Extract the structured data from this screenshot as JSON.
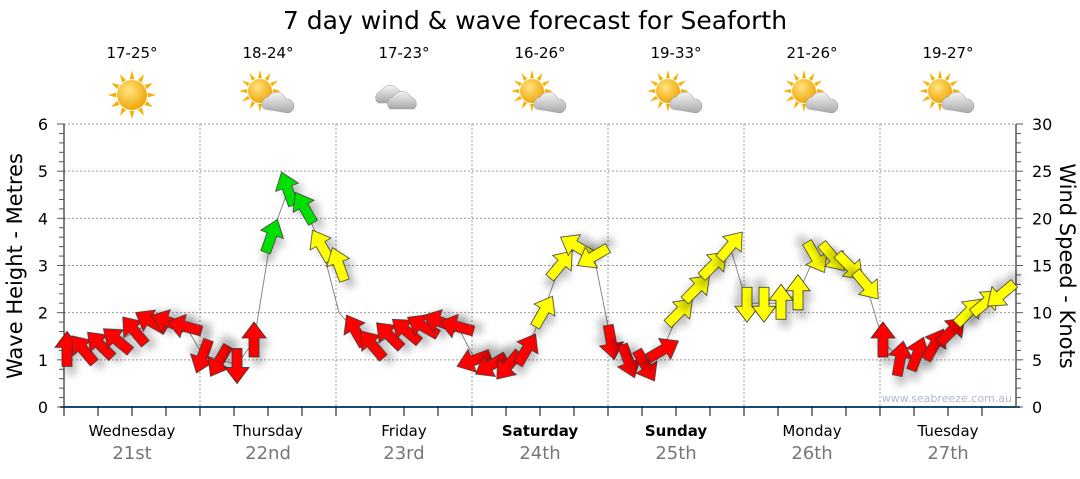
{
  "chart_data": {
    "type": "line",
    "title": "7 day wind & wave forecast for Seaforth",
    "ylabel": "Wave Height - Metres",
    "y2label": "Wind Speed - Knots",
    "ylim": [
      0,
      6
    ],
    "y2lim": [
      0,
      30
    ],
    "yticks": [
      "0",
      "1",
      "2",
      "3",
      "4",
      "5",
      "6"
    ],
    "y2ticks": [
      "0",
      "5",
      "10",
      "15",
      "20",
      "25",
      "30"
    ],
    "grid": true,
    "watermark": "www.seabreeze.com.au",
    "days": [
      {
        "name": "Wednesday",
        "date": "21st",
        "temp": "17-25°",
        "icon": "sunny-icon",
        "bold": false
      },
      {
        "name": "Thursday",
        "date": "22nd",
        "temp": "18-24°",
        "icon": "partly-cloudy-icon",
        "bold": false
      },
      {
        "name": "Friday",
        "date": "23rd",
        "temp": "17-23°",
        "icon": "cloudy-icon",
        "bold": false
      },
      {
        "name": "Saturday",
        "date": "24th",
        "temp": "16-26°",
        "icon": "partly-cloudy-icon",
        "bold": true
      },
      {
        "name": "Sunday",
        "date": "25th",
        "temp": "19-33°",
        "icon": "partly-cloudy-icon",
        "bold": true
      },
      {
        "name": "Monday",
        "date": "26th",
        "temp": "21-26°",
        "icon": "partly-cloudy-icon",
        "bold": false
      },
      {
        "name": "Tuesday",
        "date": "27th",
        "temp": "19-27°",
        "icon": "partly-cloudy-icon",
        "bold": false
      }
    ],
    "x_step_hours": 3,
    "wind_speed_knots": [
      6,
      6,
      6.5,
      7,
      8,
      9,
      9,
      8.5,
      5.5,
      5,
      4.5,
      7,
      18,
      23,
      21,
      17,
      15,
      8,
      6.5,
      7.5,
      8,
      8.5,
      9,
      8.5,
      5,
      4.5,
      4.5,
      6,
      10,
      15,
      17,
      16,
      7,
      5,
      4.5,
      6,
      10,
      12.5,
      15,
      17,
      11,
      11,
      11,
      12,
      16,
      16,
      15,
      13,
      7,
      5,
      5.5,
      6.5,
      8,
      10,
      11,
      12
    ],
    "wind_direction_deg": [
      0,
      320,
      315,
      310,
      320,
      300,
      290,
      285,
      200,
      210,
      180,
      0,
      20,
      340,
      330,
      330,
      340,
      330,
      320,
      315,
      310,
      300,
      290,
      285,
      250,
      240,
      220,
      30,
      30,
      40,
      300,
      240,
      170,
      160,
      150,
      60,
      45,
      45,
      45,
      40,
      180,
      180,
      0,
      0,
      150,
      140,
      135,
      140,
      0,
      10,
      20,
      30,
      45,
      45,
      50,
      230
    ],
    "wave_height_m": [
      1.2,
      1.2,
      1.3,
      1.4,
      1.6,
      1.8,
      1.8,
      1.7,
      1.1,
      1.0,
      0.9,
      1.4,
      3.6,
      4.6,
      4.2,
      3.4,
      2.0,
      1.6,
      1.3,
      1.5,
      1.6,
      1.7,
      1.8,
      1.7,
      1.0,
      0.9,
      0.9,
      1.2,
      2.0,
      3.0,
      3.4,
      3.2,
      1.4,
      1.0,
      0.9,
      1.2,
      2.0,
      2.5,
      3.0,
      3.4,
      2.2,
      2.2,
      2.2,
      2.4,
      3.2,
      3.2,
      3.0,
      2.6,
      1.4,
      1.0,
      1.1,
      1.3,
      1.6,
      2.0,
      2.2,
      2.4
    ],
    "color_scale": {
      "low": "#ff0000",
      "mid": "#ffff00",
      "high": "#00e000"
    }
  }
}
